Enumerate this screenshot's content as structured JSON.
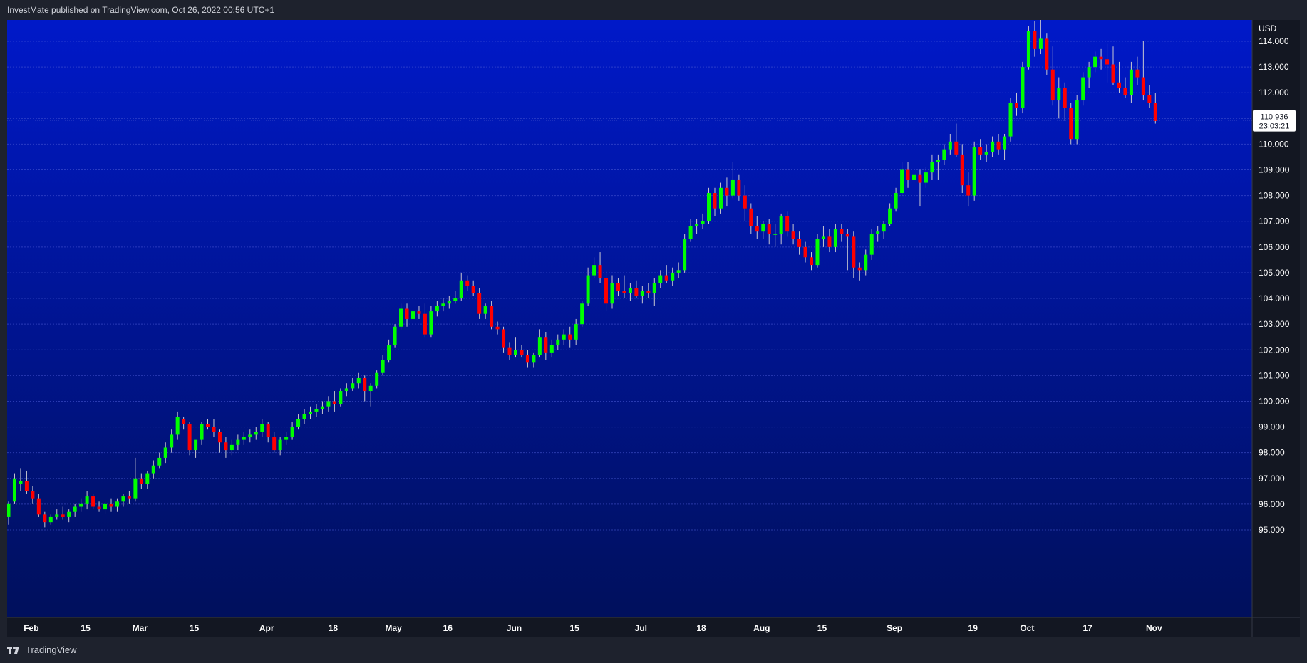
{
  "header": {
    "published_text": "InvestMate published on TradingView.com, Oct 26, 2022 00:56 UTC+1"
  },
  "footer": {
    "brand": "TradingView",
    "logo_icon": "tradingview-logo-icon"
  },
  "colors": {
    "up": "#00ff00",
    "down": "#ff0000",
    "bg_top": "#0019c9",
    "bg_bottom": "#00105c",
    "grid": "#4a5bd6",
    "wick": "#c8c8d0"
  },
  "chart_data": {
    "type": "candlestick",
    "currency": "USD",
    "ylim": [
      95.0,
      115.0
    ],
    "y_ticks": [
      "95.000",
      "96.000",
      "97.000",
      "98.000",
      "99.000",
      "100.000",
      "101.000",
      "102.000",
      "103.000",
      "104.000",
      "105.000",
      "106.000",
      "107.000",
      "108.000",
      "109.000",
      "110.000",
      "111.000",
      "112.000",
      "113.000",
      "114.000"
    ],
    "x_ticks": [
      {
        "label": "Feb",
        "index": 4
      },
      {
        "label": "15",
        "index": 13
      },
      {
        "label": "Mar",
        "index": 22
      },
      {
        "label": "15",
        "index": 31
      },
      {
        "label": "Apr",
        "index": 43
      },
      {
        "label": "18",
        "index": 54
      },
      {
        "label": "May",
        "index": 64
      },
      {
        "label": "16",
        "index": 73
      },
      {
        "label": "Jun",
        "index": 84
      },
      {
        "label": "15",
        "index": 94
      },
      {
        "label": "Jul",
        "index": 105
      },
      {
        "label": "18",
        "index": 115
      },
      {
        "label": "Aug",
        "index": 125
      },
      {
        "label": "15",
        "index": 135
      },
      {
        "label": "Sep",
        "index": 147
      },
      {
        "label": "19",
        "index": 160
      },
      {
        "label": "Oct",
        "index": 169
      },
      {
        "label": "17",
        "index": 179
      },
      {
        "label": "Nov",
        "index": 190
      }
    ],
    "x_count": 192,
    "last_price": {
      "value": "110.936",
      "countdown": "23:03:21",
      "y": 110.936
    },
    "candles": [
      [
        95.5,
        96.1,
        95.2,
        96.0
      ],
      [
        96.1,
        97.2,
        96.0,
        97.0
      ],
      [
        96.8,
        97.4,
        96.5,
        96.9
      ],
      [
        96.9,
        97.3,
        96.4,
        96.5
      ],
      [
        96.5,
        96.7,
        96.0,
        96.2
      ],
      [
        96.2,
        96.4,
        95.5,
        95.6
      ],
      [
        95.6,
        95.7,
        95.1,
        95.3
      ],
      [
        95.3,
        95.6,
        95.2,
        95.5
      ],
      [
        95.5,
        95.8,
        95.4,
        95.6
      ],
      [
        95.6,
        95.9,
        95.4,
        95.5
      ],
      [
        95.5,
        95.8,
        95.3,
        95.7
      ],
      [
        95.7,
        96.0,
        95.5,
        95.9
      ],
      [
        95.9,
        96.2,
        95.7,
        96.0
      ],
      [
        96.0,
        96.5,
        95.8,
        96.3
      ],
      [
        96.3,
        96.4,
        95.8,
        95.9
      ],
      [
        95.9,
        96.1,
        95.7,
        95.8
      ],
      [
        95.8,
        96.1,
        95.6,
        96.0
      ],
      [
        96.0,
        96.2,
        95.7,
        95.9
      ],
      [
        95.9,
        96.2,
        95.7,
        96.1
      ],
      [
        96.1,
        96.4,
        95.9,
        96.3
      ],
      [
        96.3,
        96.5,
        96.0,
        96.2
      ],
      [
        96.2,
        97.8,
        96.1,
        97.0
      ],
      [
        97.0,
        97.2,
        96.6,
        96.8
      ],
      [
        96.8,
        97.3,
        96.6,
        97.2
      ],
      [
        97.2,
        97.7,
        97.0,
        97.5
      ],
      [
        97.5,
        98.0,
        97.4,
        97.8
      ],
      [
        97.8,
        98.4,
        97.6,
        98.2
      ],
      [
        98.2,
        98.9,
        98.0,
        98.7
      ],
      [
        98.7,
        99.6,
        98.5,
        99.4
      ],
      [
        99.3,
        99.4,
        98.9,
        99.1
      ],
      [
        99.1,
        99.2,
        97.9,
        98.1
      ],
      [
        98.1,
        98.4,
        97.8,
        98.5
      ],
      [
        98.5,
        99.2,
        98.3,
        99.1
      ],
      [
        99.1,
        99.3,
        98.9,
        99.0
      ],
      [
        99.0,
        99.3,
        98.6,
        98.8
      ],
      [
        98.8,
        98.9,
        98.0,
        98.4
      ],
      [
        98.4,
        98.6,
        97.8,
        98.1
      ],
      [
        98.1,
        98.5,
        97.9,
        98.3
      ],
      [
        98.3,
        98.7,
        98.1,
        98.5
      ],
      [
        98.5,
        98.8,
        98.3,
        98.6
      ],
      [
        98.6,
        98.9,
        98.4,
        98.7
      ],
      [
        98.7,
        99.0,
        98.5,
        98.8
      ],
      [
        98.8,
        99.3,
        98.6,
        99.1
      ],
      [
        99.1,
        99.2,
        98.4,
        98.6
      ],
      [
        98.6,
        98.8,
        98.0,
        98.1
      ],
      [
        98.1,
        98.6,
        97.9,
        98.5
      ],
      [
        98.5,
        98.8,
        98.3,
        98.6
      ],
      [
        98.6,
        99.2,
        98.5,
        99.0
      ],
      [
        99.0,
        99.5,
        98.9,
        99.3
      ],
      [
        99.3,
        99.7,
        99.1,
        99.5
      ],
      [
        99.5,
        99.8,
        99.3,
        99.6
      ],
      [
        99.6,
        99.9,
        99.4,
        99.7
      ],
      [
        99.7,
        100.0,
        99.5,
        99.8
      ],
      [
        99.8,
        100.2,
        99.6,
        100.0
      ],
      [
        100.0,
        100.4,
        99.6,
        99.9
      ],
      [
        99.9,
        100.5,
        99.8,
        100.4
      ],
      [
        100.4,
        100.7,
        100.2,
        100.5
      ],
      [
        100.5,
        100.9,
        100.4,
        100.7
      ],
      [
        100.7,
        101.1,
        100.5,
        100.9
      ],
      [
        100.9,
        101.0,
        100.0,
        100.4
      ],
      [
        100.4,
        100.7,
        99.8,
        100.6
      ],
      [
        100.6,
        101.2,
        100.5,
        101.1
      ],
      [
        101.1,
        101.8,
        101.0,
        101.6
      ],
      [
        101.6,
        102.4,
        101.5,
        102.2
      ],
      [
        102.2,
        103.0,
        102.1,
        102.9
      ],
      [
        102.9,
        103.8,
        102.8,
        103.6
      ],
      [
        103.6,
        103.8,
        102.9,
        103.2
      ],
      [
        103.2,
        103.9,
        103.0,
        103.5
      ],
      [
        103.5,
        103.7,
        103.2,
        103.4
      ],
      [
        103.4,
        103.8,
        102.5,
        102.6
      ],
      [
        102.6,
        103.7,
        102.5,
        103.5
      ],
      [
        103.5,
        103.9,
        103.3,
        103.7
      ],
      [
        103.7,
        104.0,
        103.5,
        103.8
      ],
      [
        103.8,
        104.1,
        103.6,
        103.9
      ],
      [
        103.9,
        104.3,
        103.8,
        104.0
      ],
      [
        104.0,
        105.0,
        103.9,
        104.7
      ],
      [
        104.7,
        104.9,
        104.3,
        104.5
      ],
      [
        104.5,
        104.7,
        104.1,
        104.2
      ],
      [
        104.2,
        104.4,
        103.2,
        103.4
      ],
      [
        103.4,
        103.8,
        103.2,
        103.7
      ],
      [
        103.7,
        103.9,
        102.8,
        102.9
      ],
      [
        102.9,
        103.1,
        102.6,
        102.8
      ],
      [
        102.8,
        102.9,
        101.9,
        102.1
      ],
      [
        102.1,
        102.3,
        101.6,
        101.8
      ],
      [
        101.8,
        102.5,
        101.7,
        102.0
      ],
      [
        102.0,
        102.2,
        101.7,
        101.8
      ],
      [
        101.8,
        102.0,
        101.3,
        101.5
      ],
      [
        101.5,
        101.9,
        101.3,
        101.8
      ],
      [
        101.8,
        102.8,
        101.7,
        102.5
      ],
      [
        102.5,
        102.7,
        101.6,
        101.9
      ],
      [
        101.9,
        102.4,
        101.7,
        102.2
      ],
      [
        102.2,
        102.6,
        102.0,
        102.4
      ],
      [
        102.4,
        102.8,
        102.2,
        102.6
      ],
      [
        102.6,
        102.9,
        102.1,
        102.4
      ],
      [
        102.4,
        103.2,
        102.2,
        103.0
      ],
      [
        103.0,
        103.9,
        102.9,
        103.8
      ],
      [
        103.8,
        105.2,
        103.7,
        104.9
      ],
      [
        104.9,
        105.6,
        104.8,
        105.3
      ],
      [
        105.3,
        105.8,
        104.6,
        104.8
      ],
      [
        104.8,
        105.1,
        103.5,
        103.8
      ],
      [
        103.8,
        104.9,
        103.6,
        104.6
      ],
      [
        104.6,
        104.8,
        104.1,
        104.3
      ],
      [
        104.3,
        104.9,
        104.0,
        104.2
      ],
      [
        104.2,
        104.6,
        103.9,
        104.4
      ],
      [
        104.4,
        104.7,
        104.0,
        104.1
      ],
      [
        104.1,
        104.5,
        103.8,
        104.3
      ],
      [
        104.3,
        104.6,
        104.0,
        104.2
      ],
      [
        104.2,
        104.8,
        103.7,
        104.6
      ],
      [
        104.6,
        105.1,
        104.4,
        104.9
      ],
      [
        104.9,
        105.3,
        104.6,
        104.7
      ],
      [
        104.7,
        105.2,
        104.5,
        105.0
      ],
      [
        105.0,
        105.4,
        104.8,
        105.1
      ],
      [
        105.1,
        106.5,
        105.0,
        106.3
      ],
      [
        106.3,
        107.1,
        106.2,
        106.8
      ],
      [
        106.8,
        107.1,
        106.5,
        106.9
      ],
      [
        106.9,
        107.3,
        106.7,
        107.0
      ],
      [
        107.0,
        108.3,
        106.9,
        108.1
      ],
      [
        108.1,
        108.3,
        107.2,
        107.5
      ],
      [
        107.5,
        108.5,
        107.3,
        108.3
      ],
      [
        108.3,
        108.7,
        107.6,
        108.0
      ],
      [
        108.0,
        109.3,
        107.9,
        108.6
      ],
      [
        108.6,
        108.8,
        107.8,
        108.0
      ],
      [
        108.0,
        108.4,
        107.0,
        107.5
      ],
      [
        107.5,
        107.7,
        106.5,
        106.8
      ],
      [
        106.8,
        107.2,
        106.3,
        106.6
      ],
      [
        106.6,
        107.0,
        106.3,
        106.9
      ],
      [
        106.9,
        107.1,
        106.1,
        106.5
      ],
      [
        106.5,
        106.9,
        106.0,
        106.5
      ],
      [
        106.5,
        107.3,
        106.1,
        107.2
      ],
      [
        107.2,
        107.4,
        106.4,
        106.6
      ],
      [
        106.6,
        106.9,
        106.1,
        106.3
      ],
      [
        106.3,
        106.6,
        105.7,
        106.0
      ],
      [
        106.0,
        106.2,
        105.4,
        105.6
      ],
      [
        105.6,
        105.8,
        105.1,
        105.3
      ],
      [
        105.3,
        106.5,
        105.2,
        106.3
      ],
      [
        106.3,
        106.8,
        106.0,
        106.4
      ],
      [
        106.4,
        106.7,
        105.8,
        106.0
      ],
      [
        106.0,
        106.9,
        105.8,
        106.7
      ],
      [
        106.7,
        106.9,
        106.2,
        106.5
      ],
      [
        106.5,
        106.7,
        105.1,
        106.4
      ],
      [
        106.4,
        106.6,
        104.8,
        105.2
      ],
      [
        105.2,
        105.4,
        104.7,
        105.1
      ],
      [
        105.1,
        105.9,
        104.9,
        105.7
      ],
      [
        105.7,
        106.7,
        105.5,
        106.5
      ],
      [
        106.5,
        106.8,
        106.2,
        106.6
      ],
      [
        106.6,
        107.0,
        106.3,
        106.9
      ],
      [
        106.9,
        107.7,
        106.8,
        107.5
      ],
      [
        107.5,
        108.3,
        107.4,
        108.1
      ],
      [
        108.1,
        109.3,
        108.0,
        109.0
      ],
      [
        109.0,
        109.3,
        108.3,
        108.6
      ],
      [
        108.6,
        108.9,
        108.3,
        108.8
      ],
      [
        108.8,
        109.0,
        107.6,
        108.5
      ],
      [
        108.5,
        109.1,
        108.3,
        108.9
      ],
      [
        108.9,
        109.6,
        108.6,
        109.3
      ],
      [
        109.3,
        109.6,
        108.6,
        109.4
      ],
      [
        109.4,
        110.0,
        109.2,
        109.8
      ],
      [
        109.8,
        110.4,
        109.6,
        110.1
      ],
      [
        110.1,
        110.8,
        109.5,
        109.6
      ],
      [
        109.6,
        110.0,
        108.1,
        108.4
      ],
      [
        108.4,
        108.9,
        107.6,
        108.0
      ],
      [
        108.0,
        110.1,
        107.8,
        109.9
      ],
      [
        109.9,
        110.2,
        109.4,
        109.6
      ],
      [
        109.6,
        110.0,
        109.3,
        109.7
      ],
      [
        109.7,
        110.3,
        109.5,
        110.1
      ],
      [
        110.1,
        110.4,
        109.6,
        109.8
      ],
      [
        109.8,
        110.4,
        109.4,
        110.3
      ],
      [
        110.3,
        111.8,
        110.1,
        111.6
      ],
      [
        111.6,
        112.0,
        111.1,
        111.4
      ],
      [
        111.4,
        113.2,
        111.2,
        113.0
      ],
      [
        113.0,
        114.6,
        112.9,
        114.4
      ],
      [
        114.4,
        114.8,
        113.4,
        113.7
      ],
      [
        113.7,
        114.9,
        113.5,
        114.1
      ],
      [
        114.1,
        114.3,
        112.7,
        112.9
      ],
      [
        112.9,
        113.8,
        111.5,
        111.7
      ],
      [
        111.7,
        112.6,
        111.0,
        112.2
      ],
      [
        112.2,
        112.4,
        110.9,
        111.4
      ],
      [
        111.4,
        111.6,
        110.0,
        110.2
      ],
      [
        110.2,
        111.9,
        110.0,
        111.7
      ],
      [
        111.7,
        112.8,
        111.5,
        112.6
      ],
      [
        112.6,
        113.2,
        112.2,
        113.0
      ],
      [
        113.0,
        113.6,
        112.8,
        113.4
      ],
      [
        113.4,
        113.7,
        112.9,
        113.3
      ],
      [
        113.3,
        113.9,
        112.4,
        113.1
      ],
      [
        113.1,
        113.8,
        112.3,
        112.4
      ],
      [
        112.4,
        113.2,
        112.0,
        112.2
      ],
      [
        112.2,
        112.6,
        111.8,
        111.9
      ],
      [
        111.9,
        113.2,
        111.6,
        112.9
      ],
      [
        112.9,
        113.4,
        112.3,
        112.6
      ],
      [
        112.6,
        114.0,
        111.7,
        111.9
      ],
      [
        111.9,
        112.3,
        111.4,
        111.6
      ],
      [
        111.6,
        112.0,
        110.8,
        110.9
      ]
    ]
  }
}
